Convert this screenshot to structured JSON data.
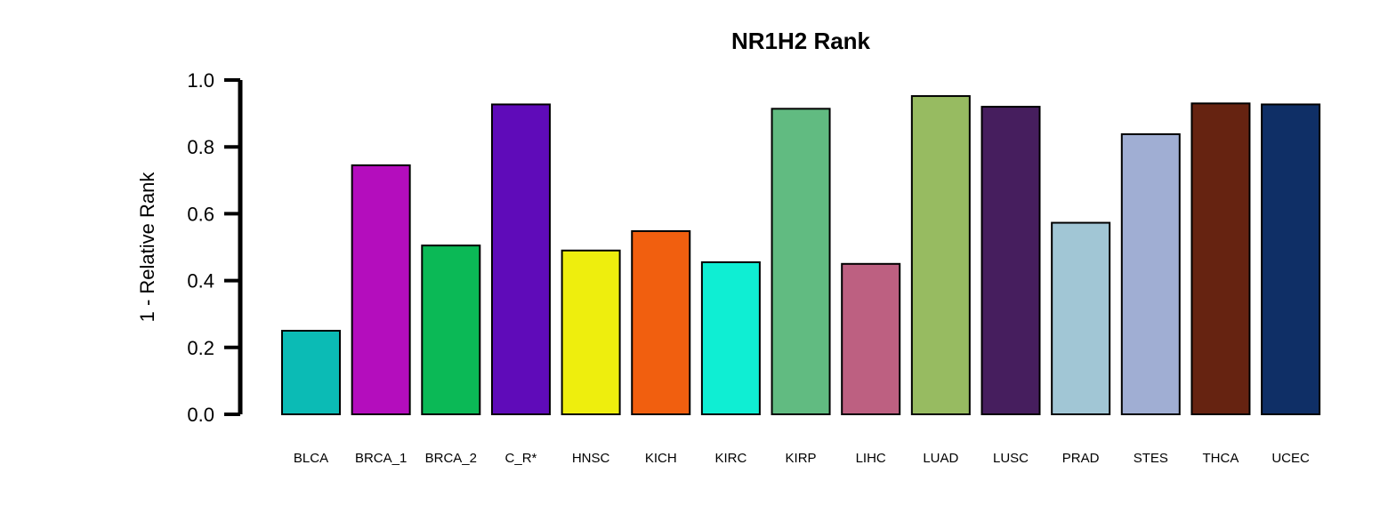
{
  "chart_data": {
    "type": "bar",
    "title": "NR1H2 Rank",
    "xlabel": "",
    "ylabel": "1 - Relative Rank",
    "ylim": [
      0,
      1
    ],
    "yticks": [
      "0.0",
      "0.2",
      "0.4",
      "0.6",
      "0.8",
      "1.0"
    ],
    "grid": false,
    "categories": [
      "BLCA",
      "BRCA_1",
      "BRCA_2",
      "C_R*",
      "HNSC",
      "KICH",
      "KIRC",
      "KIRP",
      "LIHC",
      "LUAD",
      "LUSC",
      "PRAD",
      "STES",
      "THCA",
      "UCEC"
    ],
    "values": [
      0.25,
      0.745,
      0.505,
      0.927,
      0.49,
      0.548,
      0.455,
      0.914,
      0.45,
      0.952,
      0.92,
      0.573,
      0.838,
      0.93,
      0.927
    ],
    "colors": [
      "#0BBBB5",
      "#B40DBD",
      "#0BB956",
      "#5F0BB9",
      "#EEEE0D",
      "#F15F0F",
      "#0FEED3",
      "#61BB81",
      "#BD6081",
      "#97BB61",
      "#461E5E",
      "#A1C6D5",
      "#A0AED3",
      "#662311",
      "#0F2F66"
    ]
  }
}
